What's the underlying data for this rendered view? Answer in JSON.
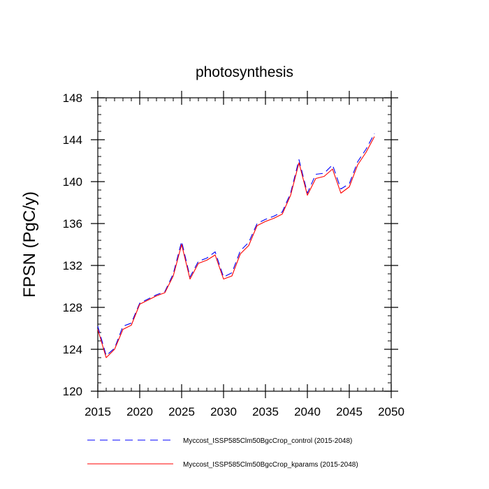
{
  "chart_data": {
    "type": "line",
    "title": "photosynthesis",
    "xlabel": "",
    "ylabel": "FPSN  (PgC/y)",
    "xlim": [
      2015,
      2050
    ],
    "ylim": [
      120,
      148
    ],
    "xticks": [
      2015,
      2020,
      2025,
      2030,
      2035,
      2040,
      2045,
      2050
    ],
    "yticks": [
      120,
      124,
      128,
      132,
      136,
      140,
      144,
      148
    ],
    "x_minor_step": 1,
    "y_minor_step": 0.8,
    "grid": false,
    "legend_position": "bottom",
    "series": [
      {
        "name": "Myccost_ISSP585Clm50BgcCrop_control (2015-2048)",
        "color": "#0000ff",
        "dash": "dashed",
        "x": [
          2015,
          2016,
          2017,
          2018,
          2019,
          2020,
          2021,
          2022,
          2023,
          2024,
          2025,
          2026,
          2027,
          2028,
          2029,
          2030,
          2031,
          2032,
          2033,
          2034,
          2035,
          2036,
          2037,
          2038,
          2039,
          2040,
          2041,
          2042,
          2043,
          2044,
          2045,
          2046,
          2047,
          2048
        ],
        "y": [
          126.2,
          123.4,
          124.1,
          126.2,
          126.5,
          128.4,
          128.8,
          129.2,
          129.5,
          131.2,
          134.3,
          130.9,
          132.4,
          132.7,
          133.3,
          130.9,
          131.3,
          133.4,
          134.2,
          136.0,
          136.4,
          136.7,
          137.1,
          138.9,
          142.1,
          138.9,
          140.7,
          140.8,
          141.6,
          139.3,
          139.8,
          141.9,
          143.1,
          144.6
        ]
      },
      {
        "name": "Myccost_ISSP585Clm50BgcCrop_kparams (2015-2048)",
        "color": "#ff0000",
        "dash": "solid",
        "x": [
          2015,
          2016,
          2017,
          2018,
          2019,
          2020,
          2021,
          2022,
          2023,
          2024,
          2025,
          2026,
          2027,
          2028,
          2029,
          2030,
          2031,
          2032,
          2033,
          2034,
          2035,
          2036,
          2037,
          2038,
          2039,
          2040,
          2041,
          2042,
          2043,
          2044,
          2045,
          2046,
          2047,
          2048
        ],
        "y": [
          125.9,
          123.2,
          124.0,
          125.9,
          126.3,
          128.3,
          128.7,
          129.1,
          129.4,
          131.0,
          134.0,
          130.7,
          132.2,
          132.5,
          133.0,
          130.7,
          131.0,
          133.1,
          133.9,
          135.8,
          136.2,
          136.5,
          136.9,
          138.7,
          141.8,
          138.7,
          140.3,
          140.5,
          141.2,
          138.9,
          139.5,
          141.6,
          142.8,
          144.3
        ]
      }
    ]
  }
}
